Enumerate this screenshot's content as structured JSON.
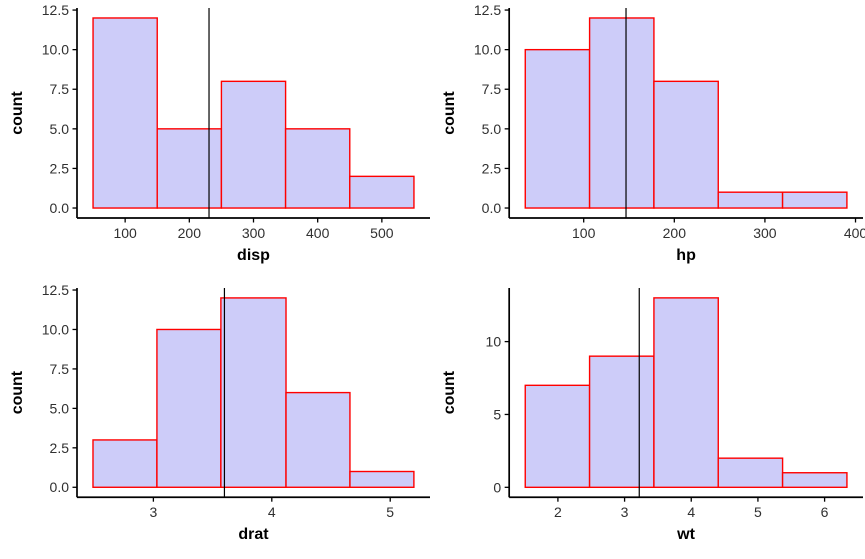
{
  "figure": {
    "background": "#ffffff",
    "description": "2x2 grid of histograms with vertical mean lines"
  },
  "style": {
    "bar_fill": "#cdccf9",
    "bar_stroke": "#ff0000",
    "mean_line_color": "#000000",
    "axis_color": "#000000",
    "tick_label_color": "#303030",
    "axis_title_color": "#000000"
  },
  "chart_data": [
    {
      "type": "bar",
      "subtype": "histogram",
      "variable": "disp",
      "xlabel": "disp",
      "ylabel": "count",
      "bin_edges": [
        50,
        150,
        250,
        350,
        450,
        550
      ],
      "counts": [
        12,
        5,
        8,
        5,
        2
      ],
      "mean_line_x": 230.7,
      "xtick_values": [
        100,
        200,
        300,
        400,
        500
      ],
      "xtick_labels": [
        "100",
        "200",
        "300",
        "400",
        "500"
      ],
      "ytick_values": [
        0,
        2.5,
        5,
        7.5,
        10,
        12.5
      ],
      "ytick_labels": [
        "0.0",
        "2.5",
        "5.0",
        "7.5",
        "10.0",
        "12.5"
      ],
      "xlim": [
        25,
        575
      ],
      "ylim": [
        -0.63,
        12.63
      ],
      "grid": "off",
      "legend": "none"
    },
    {
      "type": "bar",
      "subtype": "histogram",
      "variable": "hp",
      "xlabel": "hp",
      "ylabel": "count",
      "bin_edges": [
        35.5,
        106.5,
        177.5,
        248.5,
        319.5,
        390.5
      ],
      "counts": [
        10,
        12,
        8,
        1,
        1
      ],
      "mean_line_x": 146.7,
      "xtick_values": [
        100,
        200,
        300,
        400
      ],
      "xtick_labels": [
        "100",
        "200",
        "300",
        "400"
      ],
      "ytick_values": [
        0,
        2.5,
        5,
        7.5,
        10,
        12.5
      ],
      "ytick_labels": [
        "0.0",
        "2.5",
        "5.0",
        "7.5",
        "10.0",
        "12.5"
      ],
      "xlim": [
        17.75,
        408.25
      ],
      "ylim": [
        -0.63,
        12.63
      ],
      "grid": "off",
      "legend": "none"
    },
    {
      "type": "bar",
      "subtype": "histogram",
      "variable": "drat",
      "xlabel": "drat",
      "ylabel": "count",
      "bin_edges": [
        2.49,
        3.03,
        3.57,
        4.12,
        4.66,
        5.2
      ],
      "counts": [
        3,
        10,
        12,
        6,
        1
      ],
      "mean_line_x": 3.6,
      "xtick_values": [
        3,
        4,
        5
      ],
      "xtick_labels": [
        "3",
        "4",
        "5"
      ],
      "ytick_values": [
        0,
        2.5,
        5,
        7.5,
        10,
        12.5
      ],
      "ytick_labels": [
        "0.0",
        "2.5",
        "5.0",
        "7.5",
        "10.0",
        "12.5"
      ],
      "xlim": [
        2.355,
        5.336
      ],
      "ylim": [
        -0.63,
        12.63
      ],
      "grid": "off",
      "legend": "none"
    },
    {
      "type": "bar",
      "subtype": "histogram",
      "variable": "wt",
      "xlabel": "wt",
      "ylabel": "count",
      "bin_edges": [
        1.51,
        2.475,
        3.44,
        4.405,
        5.37,
        6.335
      ],
      "counts": [
        7,
        9,
        13,
        2,
        1
      ],
      "mean_line_x": 3.22,
      "xtick_values": [
        2,
        3,
        4,
        5,
        6
      ],
      "xtick_labels": [
        "2",
        "3",
        "4",
        "5",
        "6"
      ],
      "ytick_values": [
        0,
        5,
        10
      ],
      "ytick_labels": [
        "0",
        "5",
        "10"
      ],
      "xlim": [
        1.269,
        6.576
      ],
      "ylim": [
        -0.68,
        13.68
      ],
      "grid": "off",
      "legend": "none"
    }
  ]
}
